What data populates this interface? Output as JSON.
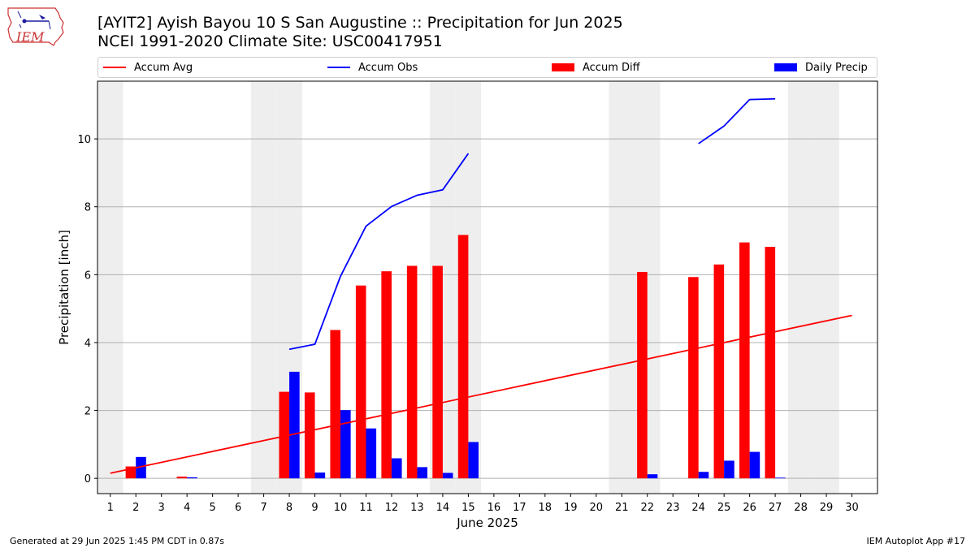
{
  "header": {
    "logo_text": "IEM",
    "title_line1": "[AYIT2] Ayish Bayou 10 S San Augustine :: Precipitation for Jun 2025",
    "title_line2": "NCEI 1991-2020 Climate Site: USC00417951"
  },
  "footer": {
    "generated": "Generated at 29 Jun 2025 1:45 PM CDT in 0.87s",
    "app": "IEM Autoplot App #17"
  },
  "colors": {
    "accum_avg": "#ff0000",
    "accum_obs": "#0000ff",
    "accum_diff": "#ff0000",
    "daily_precip": "#0000ff",
    "weekend_shade": "#eeeeee",
    "grid": "#b0b0b0"
  },
  "chart_data": {
    "type": "bar",
    "xlabel": "June 2025",
    "ylabel": "Precipitation [inch]",
    "xlim": [
      0.5,
      31
    ],
    "ylim": [
      -0.45,
      11.7
    ],
    "yticks": [
      0,
      2,
      4,
      6,
      8,
      10
    ],
    "grid": "horizontal",
    "legend_placement": "top",
    "legend": [
      "Accum Avg",
      "Accum Obs",
      "Accum Diff",
      "Daily Precip"
    ],
    "days": [
      1,
      2,
      3,
      4,
      5,
      6,
      7,
      8,
      9,
      10,
      11,
      12,
      13,
      14,
      15,
      16,
      17,
      18,
      19,
      20,
      21,
      22,
      23,
      24,
      25,
      26,
      27,
      28,
      29,
      30
    ],
    "weekend_days": [
      1,
      7,
      8,
      14,
      15,
      21,
      22,
      28,
      29
    ],
    "accum_avg": {
      "x": [
        1,
        30
      ],
      "y": [
        0.15,
        4.8
      ]
    },
    "accum_obs": [
      {
        "x": [
          8,
          9,
          10,
          11,
          12,
          13,
          14,
          15
        ],
        "y": [
          3.8,
          3.95,
          5.95,
          7.43,
          8.01,
          8.34,
          8.5,
          9.57
        ]
      },
      {
        "x": [
          24,
          25,
          26,
          27
        ],
        "y": [
          9.86,
          10.38,
          11.16,
          11.18
        ]
      }
    ],
    "accum_diff": [
      {
        "day": 2,
        "value": 0.35
      },
      {
        "day": 4,
        "value": 0.05
      },
      {
        "day": 8,
        "value": 2.55
      },
      {
        "day": 9,
        "value": 2.53
      },
      {
        "day": 10,
        "value": 4.37
      },
      {
        "day": 11,
        "value": 5.68
      },
      {
        "day": 12,
        "value": 6.1
      },
      {
        "day": 13,
        "value": 6.26
      },
      {
        "day": 14,
        "value": 6.26
      },
      {
        "day": 15,
        "value": 7.17
      },
      {
        "day": 22,
        "value": 6.08
      },
      {
        "day": 24,
        "value": 5.93
      },
      {
        "day": 25,
        "value": 6.3
      },
      {
        "day": 26,
        "value": 6.95
      },
      {
        "day": 27,
        "value": 6.82
      }
    ],
    "daily_precip": [
      {
        "day": 2,
        "value": 0.63
      },
      {
        "day": 4,
        "value": 0.03
      },
      {
        "day": 8,
        "value": 3.14
      },
      {
        "day": 9,
        "value": 0.17
      },
      {
        "day": 10,
        "value": 2.01
      },
      {
        "day": 11,
        "value": 1.47
      },
      {
        "day": 12,
        "value": 0.59
      },
      {
        "day": 13,
        "value": 0.33
      },
      {
        "day": 14,
        "value": 0.16
      },
      {
        "day": 15,
        "value": 1.07
      },
      {
        "day": 22,
        "value": 0.12
      },
      {
        "day": 24,
        "value": 0.19
      },
      {
        "day": 25,
        "value": 0.52
      },
      {
        "day": 26,
        "value": 0.78
      },
      {
        "day": 27,
        "value": 0.02
      }
    ]
  }
}
